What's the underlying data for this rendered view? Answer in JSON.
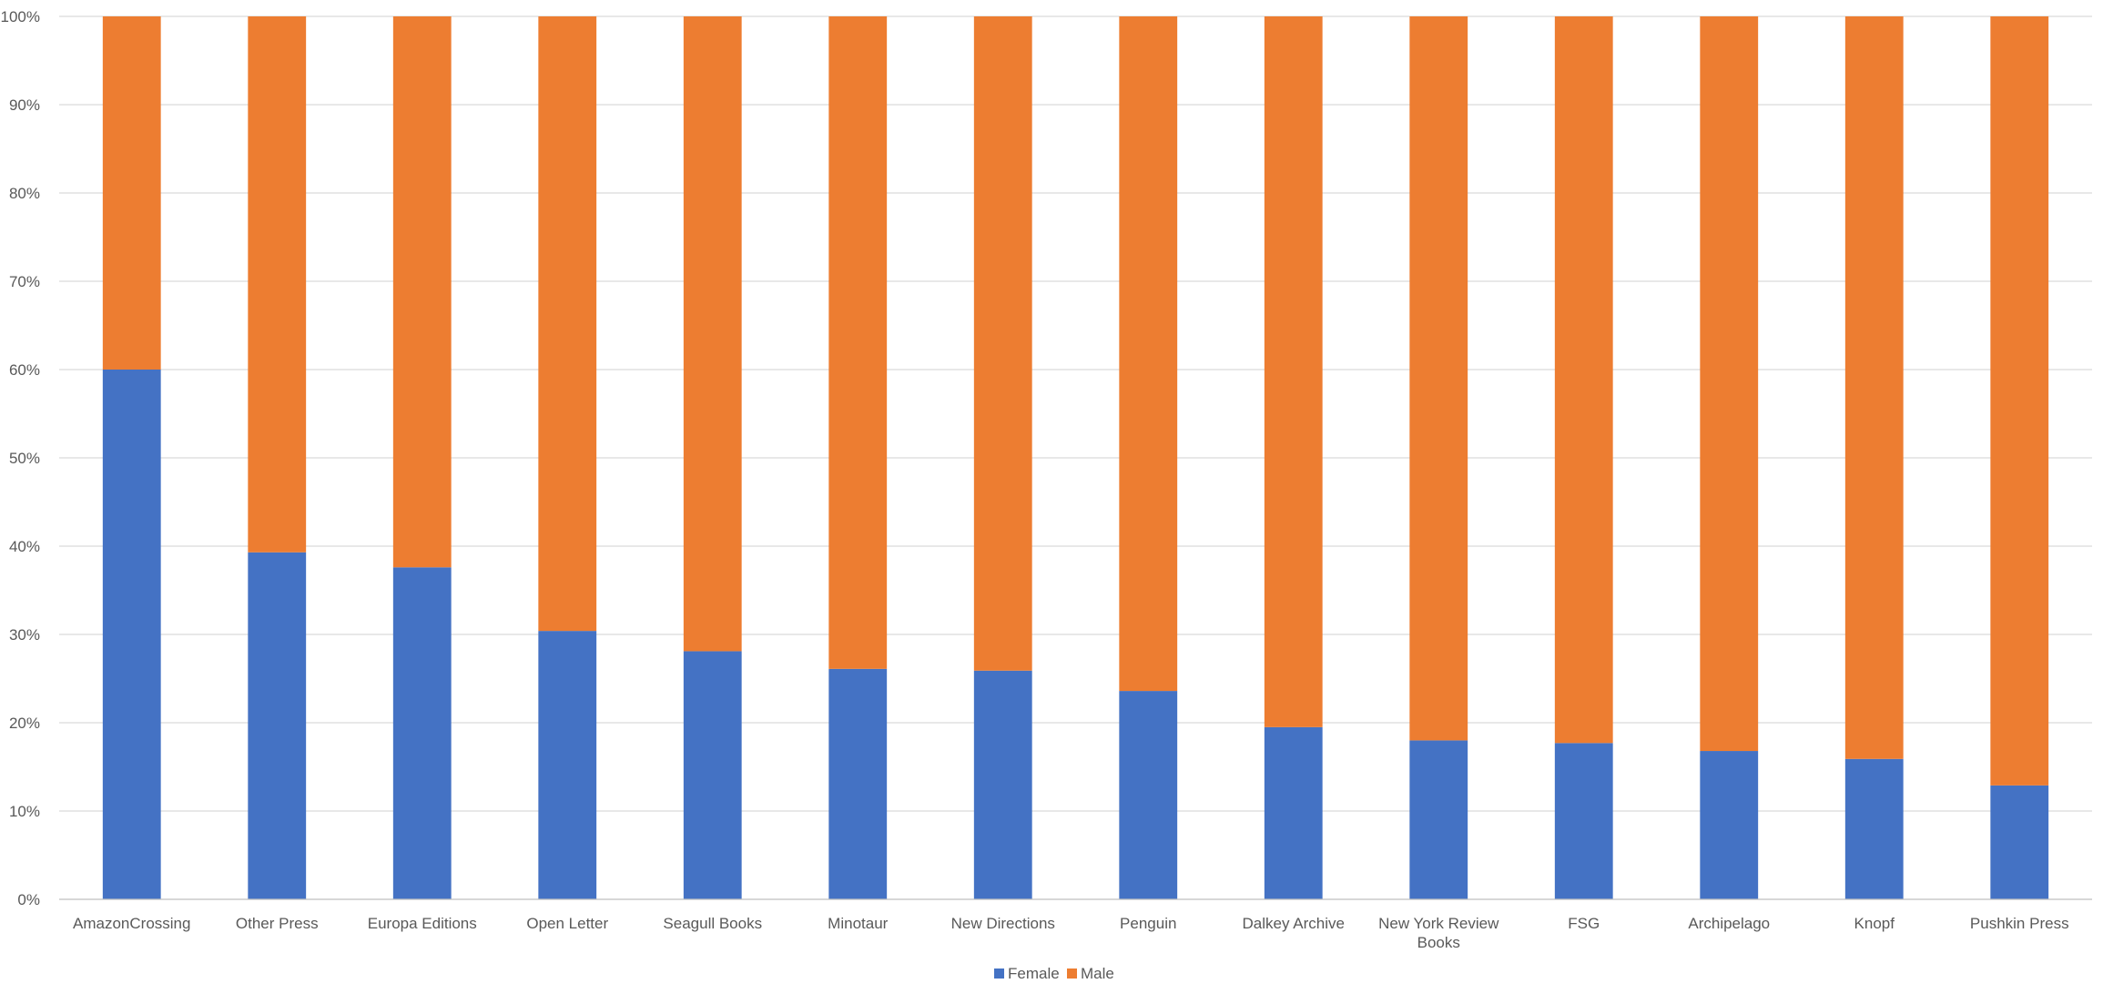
{
  "chart_data": {
    "type": "bar",
    "stacked": true,
    "percent_stacked": true,
    "categories": [
      "AmazonCrossing",
      "Other Press",
      "Europa Editions",
      "Open Letter",
      "Seagull Books",
      "Minotaur",
      "New Directions",
      "Penguin",
      "Dalkey Archive",
      "New York Review Books",
      "FSG",
      "Archipelago",
      "Knopf",
      "Pushkin Press"
    ],
    "series": [
      {
        "name": "Female",
        "color": "#4472C4",
        "values": [
          60,
          39.3,
          37.6,
          30.4,
          28.1,
          26.1,
          25.9,
          23.6,
          19.5,
          18.0,
          17.7,
          16.8,
          15.9,
          12.9
        ]
      },
      {
        "name": "Male",
        "color": "#ED7D31",
        "values": [
          40,
          60.7,
          62.4,
          69.6,
          71.9,
          73.9,
          74.1,
          76.4,
          80.5,
          82.0,
          82.3,
          83.2,
          84.1,
          87.1
        ]
      }
    ],
    "y_ticks": [
      "0%",
      "10%",
      "20%",
      "30%",
      "40%",
      "50%",
      "60%",
      "70%",
      "80%",
      "90%",
      "100%"
    ],
    "ylim": [
      0,
      100
    ],
    "grid": true,
    "legend": "bottom-center",
    "title": "",
    "xlabel": "",
    "ylabel": ""
  }
}
